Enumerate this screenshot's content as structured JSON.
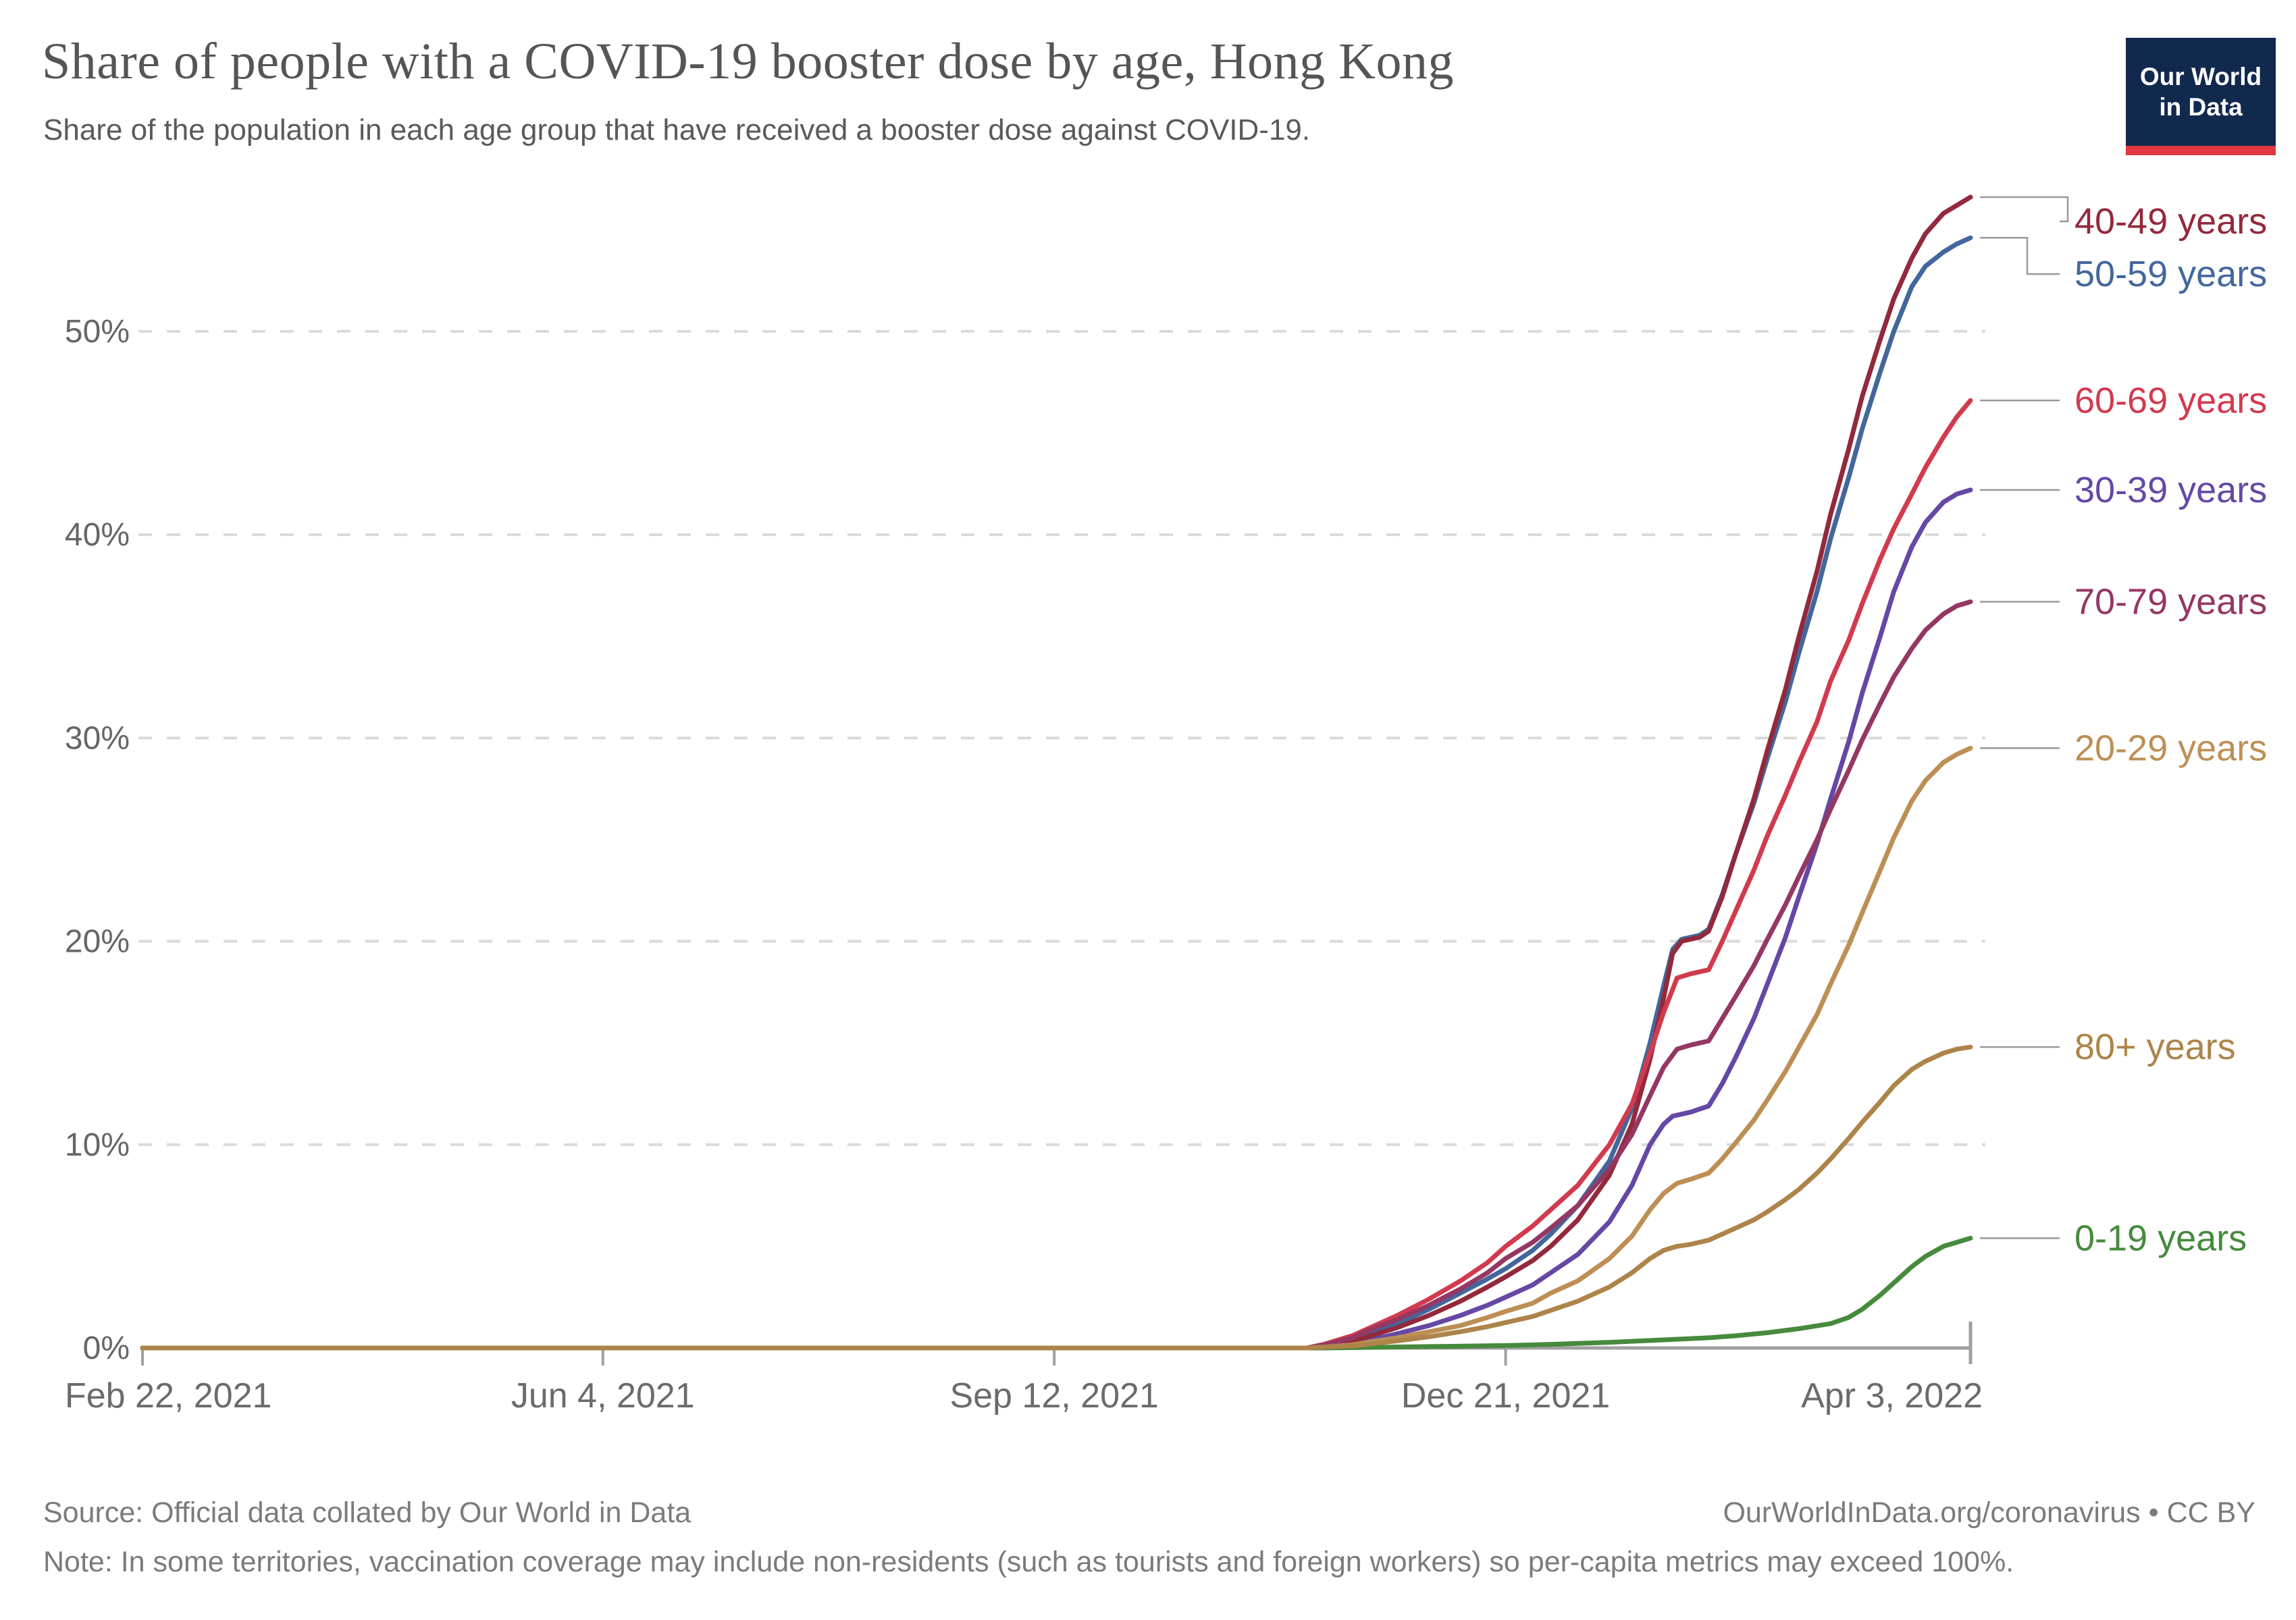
{
  "header": {
    "title": "Share of people with a COVID-19 booster dose by age, Hong Kong",
    "subtitle": "Share of the population in each age group that have received a booster dose against COVID-19.",
    "logo": {
      "line1": "Our World",
      "line2": "in Data",
      "bg_color": "#12294e",
      "bar_color": "#e0383e"
    }
  },
  "footer": {
    "source": "Source: Official data collated by Our World in Data",
    "attribution": "OurWorldInData.org/coronavirus • CC BY",
    "note": "Note: In some territories, vaccination coverage may include non-residents (such as tourists and foreign workers) so per-capita metrics may exceed 100%."
  },
  "colors": {
    "title_text": "#555555",
    "axis_line": "#a0a0a0",
    "grid_line": "#dadada",
    "tick_text": "#666666",
    "leader_line": "#999999"
  },
  "chart_data": {
    "type": "line",
    "title": "Share of people with a COVID-19 booster dose by age, Hong Kong",
    "x_axis": {
      "unit": "date",
      "day0_date": "Feb 22, 2021",
      "domain_days": [
        0,
        405
      ],
      "tick_days": [
        0,
        102,
        202,
        302,
        405
      ],
      "tick_labels": [
        "Feb 22, 2021",
        "Jun 4, 2021",
        "Sep 12, 2021",
        "Dec 21, 2021",
        "Apr 3, 2022"
      ]
    },
    "y_axis": {
      "ylim": [
        0,
        57
      ],
      "ticks": [
        0,
        10,
        20,
        30,
        40,
        50
      ],
      "tick_labels": [
        "0%",
        "10%",
        "20%",
        "30%",
        "40%",
        "50%"
      ],
      "grid": "dashed"
    },
    "legend_position": "right-of-line-ends",
    "draw_order": [
      "0-19 years",
      "30-39 years",
      "50-59 years",
      "40-49 years",
      "60-69 years",
      "70-79 years",
      "20-29 years",
      "80+ years"
    ],
    "series": [
      {
        "name": "40-49 years",
        "color": "#93293c",
        "points": [
          [
            0,
            0
          ],
          [
            258,
            0
          ],
          [
            262,
            0.1
          ],
          [
            268,
            0.3
          ],
          [
            272,
            0.6
          ],
          [
            278,
            1.0
          ],
          [
            285,
            1.6
          ],
          [
            292,
            2.3
          ],
          [
            298,
            3.0
          ],
          [
            302,
            3.5
          ],
          [
            308,
            4.3
          ],
          [
            312,
            5.0
          ],
          [
            318,
            6.3
          ],
          [
            325,
            8.5
          ],
          [
            330,
            11.0
          ],
          [
            334,
            14.2
          ],
          [
            337,
            17.2
          ],
          [
            339,
            19.4
          ],
          [
            341,
            20.0
          ],
          [
            345,
            20.2
          ],
          [
            347,
            20.5
          ],
          [
            350,
            22.2
          ],
          [
            353,
            24.3
          ],
          [
            357,
            27.0
          ],
          [
            360,
            29.4
          ],
          [
            364,
            32.4
          ],
          [
            367,
            35.0
          ],
          [
            371,
            38.2
          ],
          [
            374,
            41.0
          ],
          [
            378,
            44.2
          ],
          [
            381,
            46.8
          ],
          [
            385,
            49.6
          ],
          [
            388,
            51.6
          ],
          [
            392,
            53.6
          ],
          [
            395,
            54.8
          ],
          [
            399,
            55.8
          ],
          [
            402,
            56.2
          ],
          [
            405,
            56.6
          ]
        ]
      },
      {
        "name": "50-59 years",
        "color": "#43679c",
        "points": [
          [
            0,
            0
          ],
          [
            258,
            0
          ],
          [
            262,
            0.1
          ],
          [
            268,
            0.4
          ],
          [
            272,
            0.7
          ],
          [
            278,
            1.2
          ],
          [
            285,
            1.9
          ],
          [
            292,
            2.7
          ],
          [
            298,
            3.4
          ],
          [
            302,
            3.9
          ],
          [
            308,
            4.8
          ],
          [
            312,
            5.6
          ],
          [
            318,
            7.0
          ],
          [
            325,
            9.2
          ],
          [
            330,
            11.8
          ],
          [
            334,
            15.0
          ],
          [
            337,
            17.8
          ],
          [
            339,
            19.6
          ],
          [
            341,
            20.1
          ],
          [
            345,
            20.3
          ],
          [
            347,
            20.6
          ],
          [
            350,
            22.3
          ],
          [
            353,
            24.3
          ],
          [
            357,
            26.8
          ],
          [
            360,
            29.0
          ],
          [
            364,
            31.8
          ],
          [
            367,
            34.2
          ],
          [
            371,
            37.2
          ],
          [
            374,
            39.8
          ],
          [
            378,
            42.8
          ],
          [
            381,
            45.2
          ],
          [
            385,
            48.0
          ],
          [
            388,
            50.0
          ],
          [
            392,
            52.2
          ],
          [
            395,
            53.2
          ],
          [
            399,
            53.9
          ],
          [
            402,
            54.3
          ],
          [
            405,
            54.6
          ]
        ]
      },
      {
        "name": "60-69 years",
        "color": "#d23a4e",
        "points": [
          [
            0,
            0
          ],
          [
            258,
            0
          ],
          [
            262,
            0.2
          ],
          [
            268,
            0.6
          ],
          [
            272,
            1.0
          ],
          [
            278,
            1.6
          ],
          [
            285,
            2.4
          ],
          [
            292,
            3.3
          ],
          [
            298,
            4.2
          ],
          [
            302,
            5.0
          ],
          [
            308,
            6.0
          ],
          [
            312,
            6.8
          ],
          [
            318,
            8.0
          ],
          [
            325,
            10.0
          ],
          [
            330,
            12.0
          ],
          [
            334,
            14.5
          ],
          [
            337,
            16.5
          ],
          [
            340,
            18.2
          ],
          [
            343,
            18.4
          ],
          [
            347,
            18.6
          ],
          [
            350,
            20.0
          ],
          [
            353,
            21.5
          ],
          [
            357,
            23.5
          ],
          [
            360,
            25.2
          ],
          [
            364,
            27.2
          ],
          [
            367,
            28.8
          ],
          [
            371,
            30.8
          ],
          [
            374,
            32.8
          ],
          [
            378,
            34.8
          ],
          [
            381,
            36.6
          ],
          [
            385,
            38.8
          ],
          [
            388,
            40.3
          ],
          [
            392,
            42.0
          ],
          [
            395,
            43.3
          ],
          [
            399,
            44.8
          ],
          [
            402,
            45.8
          ],
          [
            405,
            46.6
          ]
        ]
      },
      {
        "name": "30-39 years",
        "color": "#6548a5",
        "points": [
          [
            0,
            0
          ],
          [
            258,
            0
          ],
          [
            262,
            0.05
          ],
          [
            268,
            0.2
          ],
          [
            272,
            0.4
          ],
          [
            278,
            0.7
          ],
          [
            285,
            1.1
          ],
          [
            292,
            1.6
          ],
          [
            298,
            2.1
          ],
          [
            302,
            2.5
          ],
          [
            308,
            3.1
          ],
          [
            312,
            3.7
          ],
          [
            318,
            4.6
          ],
          [
            325,
            6.2
          ],
          [
            330,
            8.0
          ],
          [
            334,
            10.0
          ],
          [
            337,
            11.0
          ],
          [
            339,
            11.4
          ],
          [
            343,
            11.6
          ],
          [
            347,
            11.9
          ],
          [
            350,
            13.0
          ],
          [
            353,
            14.3
          ],
          [
            357,
            16.2
          ],
          [
            360,
            17.9
          ],
          [
            364,
            20.2
          ],
          [
            367,
            22.2
          ],
          [
            371,
            24.8
          ],
          [
            374,
            27.0
          ],
          [
            378,
            29.8
          ],
          [
            381,
            32.2
          ],
          [
            385,
            35.0
          ],
          [
            388,
            37.2
          ],
          [
            392,
            39.4
          ],
          [
            395,
            40.6
          ],
          [
            399,
            41.6
          ],
          [
            402,
            42.0
          ],
          [
            405,
            42.2
          ]
        ]
      },
      {
        "name": "70-79 years",
        "color": "#953763",
        "points": [
          [
            0,
            0
          ],
          [
            258,
            0
          ],
          [
            262,
            0.15
          ],
          [
            268,
            0.5
          ],
          [
            272,
            0.9
          ],
          [
            278,
            1.4
          ],
          [
            285,
            2.1
          ],
          [
            292,
            2.9
          ],
          [
            298,
            3.7
          ],
          [
            302,
            4.4
          ],
          [
            308,
            5.2
          ],
          [
            312,
            5.9
          ],
          [
            318,
            7.0
          ],
          [
            325,
            8.8
          ],
          [
            330,
            10.5
          ],
          [
            334,
            12.4
          ],
          [
            337,
            13.8
          ],
          [
            340,
            14.7
          ],
          [
            343,
            14.9
          ],
          [
            347,
            15.1
          ],
          [
            350,
            16.2
          ],
          [
            353,
            17.3
          ],
          [
            357,
            18.8
          ],
          [
            360,
            20.1
          ],
          [
            364,
            21.8
          ],
          [
            367,
            23.2
          ],
          [
            371,
            25.0
          ],
          [
            374,
            26.5
          ],
          [
            378,
            28.4
          ],
          [
            381,
            29.9
          ],
          [
            385,
            31.7
          ],
          [
            388,
            33.0
          ],
          [
            392,
            34.4
          ],
          [
            395,
            35.3
          ],
          [
            399,
            36.1
          ],
          [
            402,
            36.5
          ],
          [
            405,
            36.7
          ]
        ]
      },
      {
        "name": "20-29 years",
        "color": "#bd8f55",
        "points": [
          [
            0,
            0
          ],
          [
            258,
            0
          ],
          [
            262,
            0.05
          ],
          [
            268,
            0.15
          ],
          [
            272,
            0.3
          ],
          [
            278,
            0.5
          ],
          [
            285,
            0.8
          ],
          [
            292,
            1.1
          ],
          [
            298,
            1.5
          ],
          [
            302,
            1.8
          ],
          [
            308,
            2.2
          ],
          [
            312,
            2.7
          ],
          [
            318,
            3.3
          ],
          [
            325,
            4.4
          ],
          [
            330,
            5.5
          ],
          [
            334,
            6.8
          ],
          [
            337,
            7.6
          ],
          [
            340,
            8.1
          ],
          [
            343,
            8.3
          ],
          [
            347,
            8.6
          ],
          [
            350,
            9.3
          ],
          [
            353,
            10.1
          ],
          [
            357,
            11.2
          ],
          [
            360,
            12.2
          ],
          [
            364,
            13.6
          ],
          [
            367,
            14.8
          ],
          [
            371,
            16.4
          ],
          [
            374,
            17.9
          ],
          [
            378,
            19.8
          ],
          [
            381,
            21.4
          ],
          [
            385,
            23.5
          ],
          [
            388,
            25.1
          ],
          [
            392,
            26.9
          ],
          [
            395,
            27.9
          ],
          [
            399,
            28.8
          ],
          [
            402,
            29.2
          ],
          [
            405,
            29.5
          ]
        ]
      },
      {
        "name": "80+ years",
        "color": "#ad8449",
        "points": [
          [
            0,
            0
          ],
          [
            258,
            0
          ],
          [
            262,
            0.05
          ],
          [
            268,
            0.1
          ],
          [
            272,
            0.2
          ],
          [
            278,
            0.35
          ],
          [
            285,
            0.55
          ],
          [
            292,
            0.8
          ],
          [
            298,
            1.05
          ],
          [
            302,
            1.25
          ],
          [
            308,
            1.55
          ],
          [
            312,
            1.85
          ],
          [
            318,
            2.3
          ],
          [
            325,
            3.0
          ],
          [
            330,
            3.7
          ],
          [
            334,
            4.4
          ],
          [
            337,
            4.8
          ],
          [
            340,
            5.0
          ],
          [
            343,
            5.1
          ],
          [
            347,
            5.3
          ],
          [
            350,
            5.6
          ],
          [
            353,
            5.9
          ],
          [
            357,
            6.3
          ],
          [
            360,
            6.7
          ],
          [
            364,
            7.3
          ],
          [
            367,
            7.8
          ],
          [
            371,
            8.6
          ],
          [
            374,
            9.3
          ],
          [
            378,
            10.3
          ],
          [
            381,
            11.1
          ],
          [
            385,
            12.1
          ],
          [
            388,
            12.9
          ],
          [
            392,
            13.7
          ],
          [
            395,
            14.1
          ],
          [
            399,
            14.5
          ],
          [
            402,
            14.7
          ],
          [
            405,
            14.8
          ]
        ]
      },
      {
        "name": "0-19 years",
        "color": "#468a3d",
        "points": [
          [
            0,
            0
          ],
          [
            258,
            0
          ],
          [
            262,
            0
          ],
          [
            272,
            0.03
          ],
          [
            285,
            0.07
          ],
          [
            302,
            0.12
          ],
          [
            312,
            0.18
          ],
          [
            325,
            0.28
          ],
          [
            337,
            0.4
          ],
          [
            347,
            0.5
          ],
          [
            353,
            0.6
          ],
          [
            360,
            0.75
          ],
          [
            367,
            0.95
          ],
          [
            374,
            1.2
          ],
          [
            378,
            1.5
          ],
          [
            381,
            1.9
          ],
          [
            385,
            2.6
          ],
          [
            388,
            3.2
          ],
          [
            392,
            4.0
          ],
          [
            395,
            4.5
          ],
          [
            399,
            5.0
          ],
          [
            402,
            5.2
          ],
          [
            405,
            5.4
          ]
        ]
      }
    ]
  }
}
